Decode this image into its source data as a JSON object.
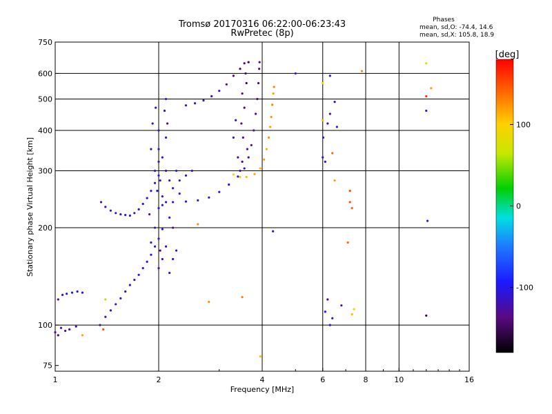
{
  "title_line1": "Tromsø 20170316 06:22:00-06:23:43",
  "title_line2": "RwPretec (8p)",
  "stats": {
    "heading": "Phases",
    "line_o": "mean, sd,O: -74.4, 14.6",
    "line_x": "mean, sd,X: 105.8, 18.9"
  },
  "colorbar": {
    "label": "[deg]",
    "min": -180,
    "max": 180,
    "ticks": [
      {
        "value": 100,
        "label": "100"
      },
      {
        "value": 0,
        "label": "0"
      },
      {
        "value": -100,
        "label": "-100"
      }
    ]
  },
  "chart_data": {
    "type": "scatter",
    "xlabel": "Frequency [MHz]",
    "ylabel": "Stationary phase Virtual Height [km]",
    "xscale": "log",
    "yscale": "log",
    "xlim": [
      1,
      16
    ],
    "ylim": [
      72,
      750
    ],
    "xticks": [
      {
        "value": 1,
        "label": "1"
      },
      {
        "value": 2,
        "label": "2"
      },
      {
        "value": 4,
        "label": "4"
      },
      {
        "value": 6,
        "label": "6"
      },
      {
        "value": 8,
        "label": "8"
      },
      {
        "value": 10,
        "label": "10"
      },
      {
        "value": 16,
        "label": "16"
      }
    ],
    "yticks": [
      {
        "value": 75,
        "label": "75"
      },
      {
        "value": 100,
        "label": "100"
      },
      {
        "value": 200,
        "label": "200"
      },
      {
        "value": 300,
        "label": "300"
      },
      {
        "value": 400,
        "label": "400"
      },
      {
        "value": 500,
        "label": "500"
      },
      {
        "value": 600,
        "label": "600"
      },
      {
        "value": 750,
        "label": "750"
      }
    ],
    "xgrid": [
      2,
      4,
      6,
      8,
      10
    ],
    "ygrid": [
      100,
      200,
      300,
      400,
      500,
      600
    ],
    "phase_unit": "deg",
    "traces": [
      {
        "points": [
          [
            1.02,
            120,
            -130
          ],
          [
            1.05,
            124,
            -110
          ],
          [
            1.08,
            125,
            -100
          ],
          [
            1.12,
            126,
            -95
          ],
          [
            1.16,
            127,
            -105
          ],
          [
            1.2,
            126,
            -100
          ],
          [
            1.04,
            98,
            -120
          ],
          [
            1.07,
            96,
            -130
          ],
          [
            1.1,
            97,
            -140
          ],
          [
            1.15,
            99,
            -120
          ],
          [
            1.02,
            93,
            -140
          ],
          [
            1.0,
            95,
            -130
          ]
        ]
      },
      {
        "points": [
          [
            1.35,
            100,
            -120
          ],
          [
            1.4,
            106,
            -120
          ],
          [
            1.45,
            111,
            -115
          ],
          [
            1.5,
            116,
            -110
          ],
          [
            1.55,
            121,
            -115
          ],
          [
            1.6,
            127,
            -110
          ],
          [
            1.65,
            133,
            -100
          ],
          [
            1.7,
            138,
            -105
          ],
          [
            1.75,
            143,
            -100
          ],
          [
            1.8,
            150,
            -110
          ],
          [
            1.85,
            157,
            -100
          ],
          [
            1.9,
            165,
            -105
          ],
          [
            1.95,
            175,
            -100
          ],
          [
            2.0,
            185,
            -110
          ],
          [
            2.05,
            198,
            -100
          ]
        ]
      },
      {
        "points": [
          [
            1.36,
            240,
            -125
          ],
          [
            1.4,
            232,
            -120
          ],
          [
            1.45,
            226,
            -115
          ],
          [
            1.5,
            222,
            -110
          ],
          [
            1.55,
            220,
            -120
          ],
          [
            1.6,
            219,
            -115
          ],
          [
            1.65,
            218,
            -110
          ],
          [
            1.7,
            222,
            -110
          ],
          [
            1.75,
            228,
            -115
          ],
          [
            1.8,
            237,
            -105
          ],
          [
            1.85,
            247,
            -110
          ],
          [
            1.9,
            260,
            -100
          ],
          [
            1.95,
            275,
            -110
          ],
          [
            2.0,
            290,
            -105
          ]
        ]
      },
      {
        "points": [
          [
            2.0,
            230,
            -100
          ],
          [
            2.05,
            235,
            -110
          ],
          [
            2.1,
            240,
            -100
          ],
          [
            2.2,
            240,
            -105
          ],
          [
            2.4,
            241,
            -110
          ],
          [
            2.6,
            243,
            -100
          ],
          [
            2.8,
            248,
            -105
          ],
          [
            3.0,
            258,
            -105
          ],
          [
            3.2,
            272,
            -110
          ],
          [
            3.4,
            288,
            -110
          ],
          [
            3.55,
            305,
            -120
          ],
          [
            3.65,
            330,
            -125
          ],
          [
            3.72,
            360,
            -130
          ],
          [
            3.78,
            400,
            -130
          ],
          [
            3.83,
            450,
            -135
          ],
          [
            3.87,
            500,
            -140
          ],
          [
            3.9,
            560,
            -140
          ],
          [
            3.92,
            620,
            -140
          ],
          [
            3.93,
            650,
            -135
          ]
        ]
      },
      {
        "points": [
          [
            2.4,
            478,
            -110
          ],
          [
            2.55,
            485,
            -120
          ],
          [
            2.7,
            495,
            -115
          ],
          [
            2.85,
            510,
            -120
          ],
          [
            3.0,
            530,
            -120
          ],
          [
            3.15,
            555,
            -130
          ],
          [
            3.3,
            590,
            -140
          ],
          [
            3.45,
            620,
            -145
          ],
          [
            3.55,
            645,
            -140
          ],
          [
            3.65,
            650,
            -150
          ]
        ]
      },
      {
        "points": [
          [
            3.3,
            292,
            95
          ],
          [
            3.45,
            287,
            105
          ],
          [
            3.6,
            287,
            110
          ],
          [
            3.8,
            293,
            115
          ],
          [
            3.95,
            305,
            110
          ],
          [
            4.05,
            325,
            120
          ],
          [
            4.12,
            350,
            115
          ],
          [
            4.18,
            380,
            125
          ],
          [
            4.22,
            410,
            120
          ],
          [
            4.25,
            440,
            125
          ],
          [
            4.28,
            480,
            130
          ],
          [
            4.31,
            520,
            120
          ],
          [
            4.33,
            545,
            130
          ]
        ]
      },
      {
        "points": [
          [
            2.0,
            400,
            -120
          ],
          [
            2.0,
            350,
            -120
          ],
          [
            2.0,
            320,
            -110
          ],
          [
            2.02,
            280,
            -115
          ],
          [
            1.98,
            260,
            -105
          ],
          [
            2.05,
            250,
            -120
          ],
          [
            1.95,
            300,
            -110
          ],
          [
            1.9,
            350,
            -120
          ],
          [
            1.92,
            420,
            -100
          ],
          [
            2.1,
            380,
            -110
          ],
          [
            2.05,
            330,
            -100
          ],
          [
            2.1,
            300,
            -125
          ],
          [
            2.15,
            280,
            -115
          ],
          [
            2.2,
            265,
            -110
          ],
          [
            2.3,
            255,
            -105
          ],
          [
            2.25,
            300,
            -100
          ],
          [
            2.12,
            420,
            -130
          ],
          [
            2.08,
            460,
            -120
          ],
          [
            1.96,
            470,
            -115
          ],
          [
            2.1,
            500,
            -100
          ],
          [
            2.15,
            215,
            -105
          ],
          [
            2.2,
            200,
            -140
          ],
          [
            2.1,
            175,
            -120
          ],
          [
            2.05,
            160,
            -125
          ],
          [
            2.0,
            150,
            -130
          ],
          [
            2.15,
            145,
            -120
          ],
          [
            2.2,
            160,
            -110
          ],
          [
            2.25,
            170,
            -115
          ],
          [
            1.95,
            200,
            -125
          ],
          [
            1.9,
            180,
            -115
          ],
          [
            2.02,
            170,
            -140
          ],
          [
            1.88,
            220,
            -130
          ],
          [
            2.3,
            280,
            -120
          ],
          [
            2.4,
            290,
            -105
          ],
          [
            2.5,
            300,
            -110
          ]
        ]
      },
      {
        "points": [
          [
            3.5,
            320,
            -140
          ],
          [
            3.52,
            380,
            -135
          ],
          [
            3.48,
            420,
            -130
          ],
          [
            3.55,
            470,
            -140
          ],
          [
            3.5,
            520,
            -140
          ],
          [
            3.6,
            560,
            -150
          ],
          [
            3.58,
            600,
            -145
          ],
          [
            3.62,
            350,
            -130
          ],
          [
            3.45,
            300,
            -130
          ],
          [
            3.4,
            330,
            -120
          ],
          [
            3.3,
            380,
            -110
          ],
          [
            3.35,
            430,
            -120
          ]
        ]
      },
      {
        "points": [
          [
            6.0,
            330,
            -120
          ],
          [
            6.0,
            430,
            110
          ],
          [
            6.02,
            380,
            -110
          ],
          [
            6.1,
            320,
            -120
          ],
          [
            6.3,
            450,
            -130
          ],
          [
            6.5,
            280,
            120
          ],
          [
            6.4,
            340,
            140
          ],
          [
            6.2,
            420,
            -110
          ],
          [
            7.2,
            260,
            150
          ],
          [
            7.2,
            240,
            150
          ],
          [
            7.3,
            230,
            140
          ],
          [
            7.1,
            180,
            140
          ],
          [
            6.0,
            560,
            100
          ],
          [
            6.3,
            590,
            -110
          ],
          [
            6.5,
            490,
            -115
          ],
          [
            6.6,
            410,
            -100
          ],
          [
            6.2,
            120,
            -140
          ],
          [
            6.1,
            110,
            -100
          ],
          [
            6.8,
            115,
            -130
          ],
          [
            7.3,
            108,
            110
          ],
          [
            7.4,
            112,
            90
          ],
          [
            6.4,
            105,
            -120
          ],
          [
            6.3,
            100,
            -100
          ],
          [
            3.95,
            80,
            110
          ],
          [
            4.3,
            195,
            -120
          ],
          [
            5.0,
            600,
            -100
          ],
          [
            7.8,
            610,
            130
          ],
          [
            12.0,
            510,
            160
          ],
          [
            12.4,
            540,
            120
          ],
          [
            12.0,
            460,
            -100
          ],
          [
            12.0,
            645,
            90
          ],
          [
            12.1,
            210,
            -110
          ],
          [
            12.0,
            107,
            -150
          ],
          [
            2.6,
            205,
            125
          ],
          [
            2.8,
            118,
            125
          ],
          [
            3.5,
            122,
            130
          ],
          [
            1.4,
            120,
            60
          ],
          [
            1.38,
            97,
            150
          ],
          [
            1.2,
            93,
            115
          ]
        ]
      }
    ]
  }
}
